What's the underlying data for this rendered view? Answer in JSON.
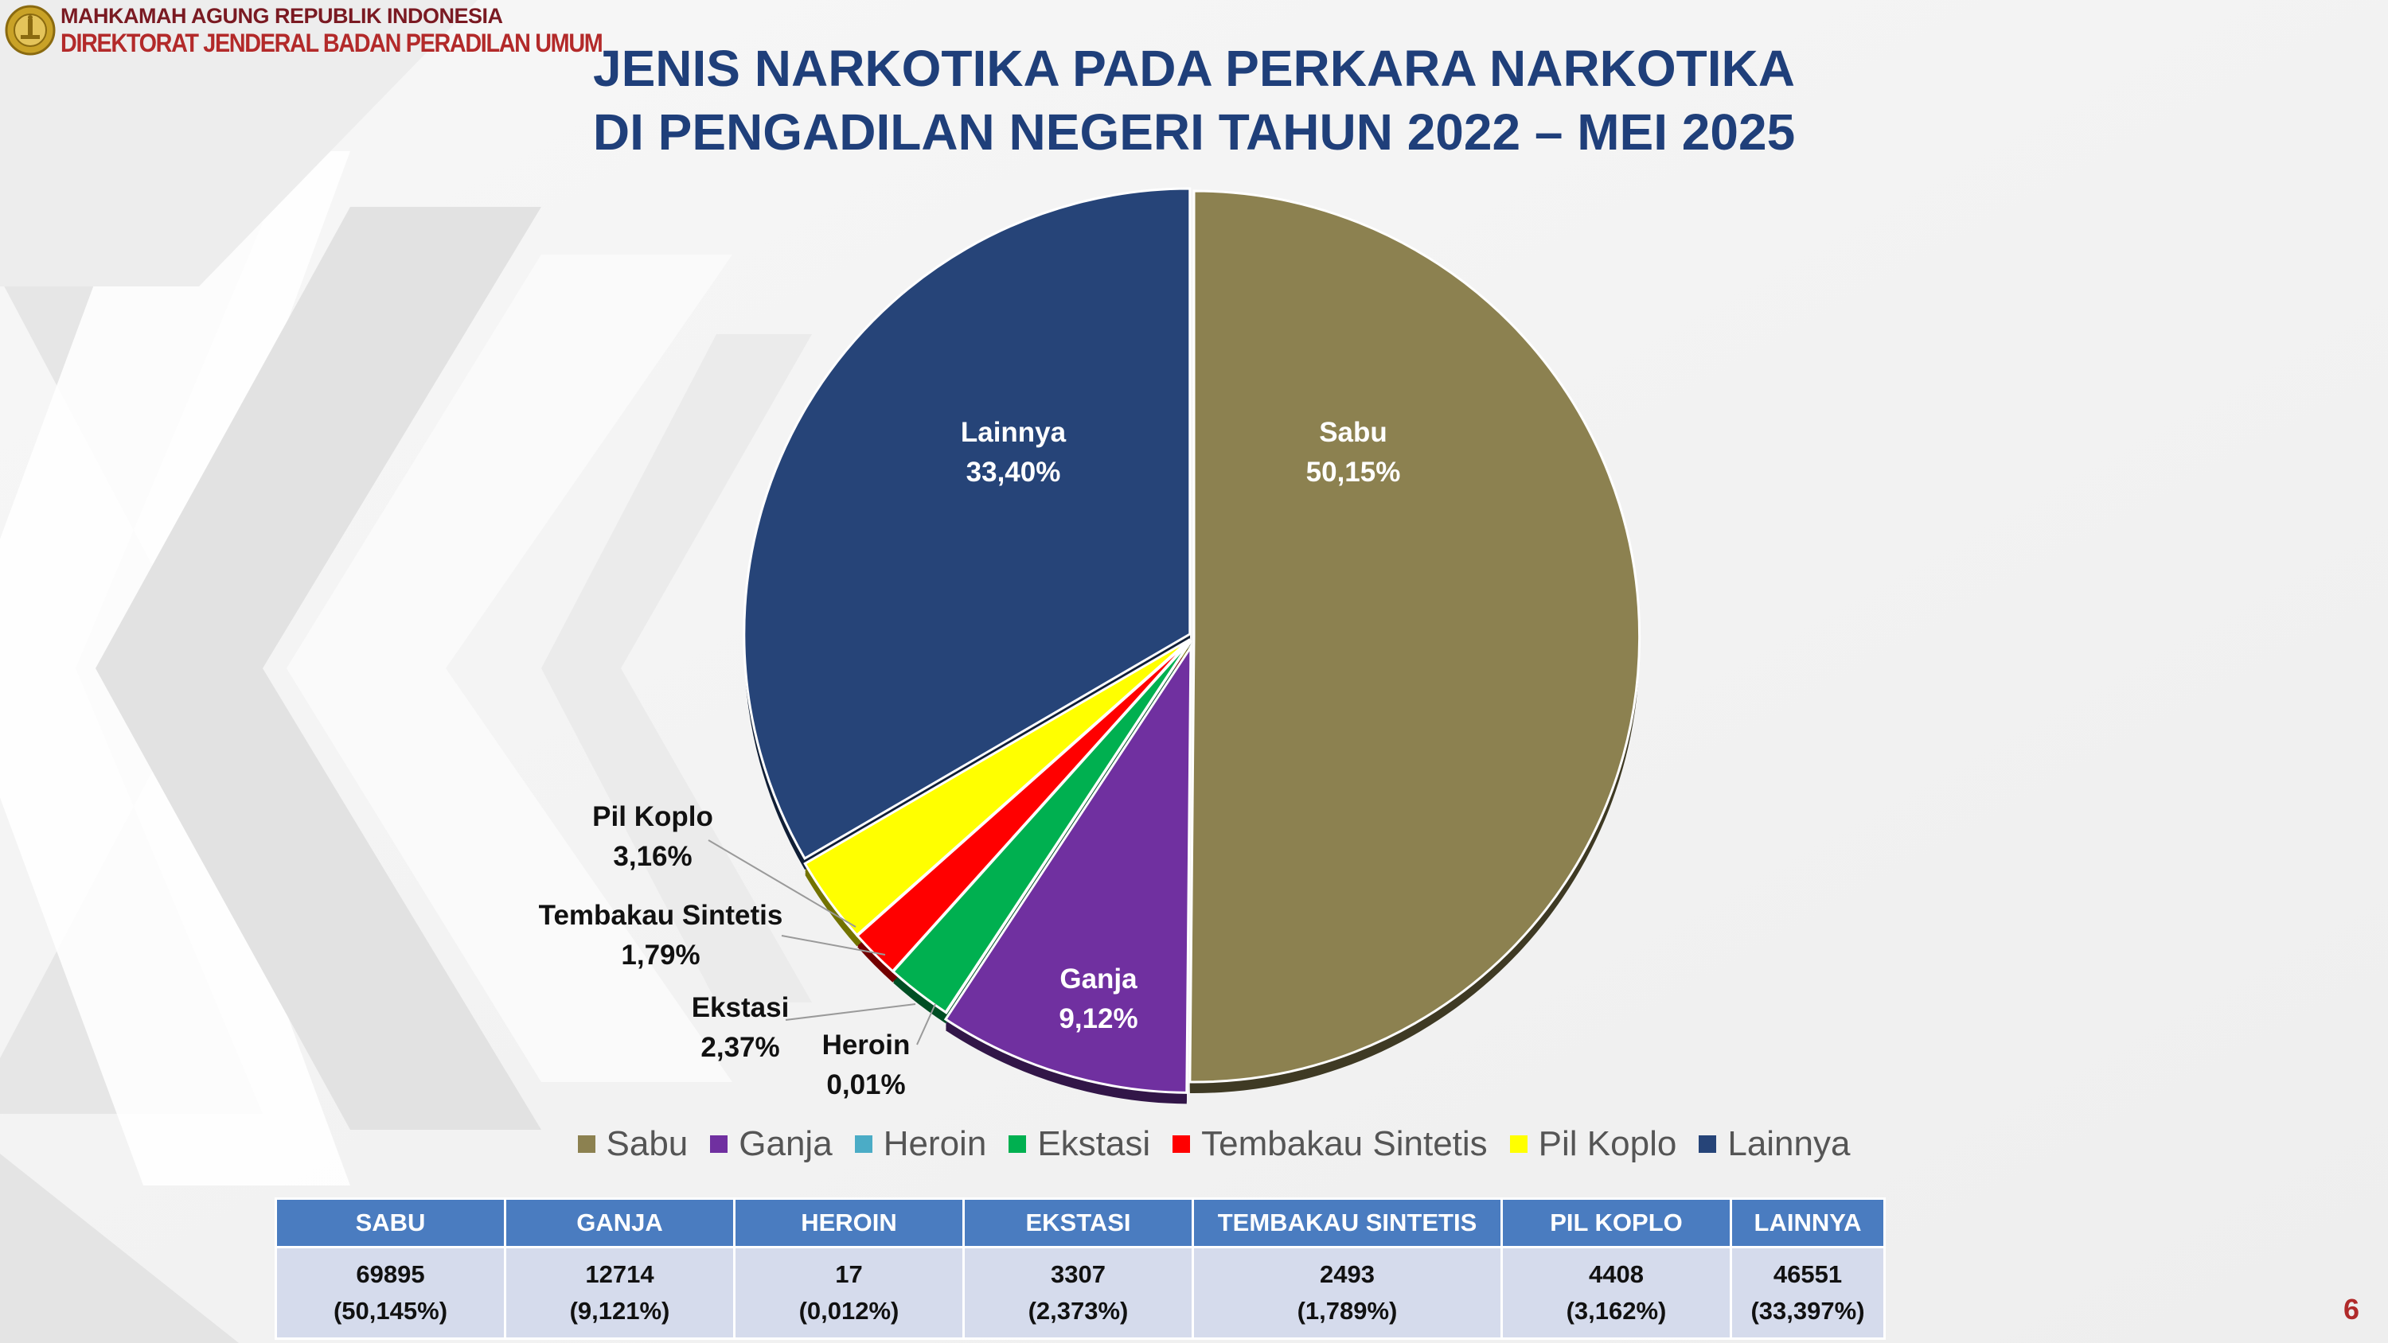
{
  "header": {
    "org_line1": "MAHKAMAH AGUNG REPUBLIK INDONESIA",
    "org_line2": "DIREKTORAT JENDERAL BADAN PERADILAN UMUM"
  },
  "title": {
    "line1": "JENIS NARKOTIKA PADA PERKARA NARKOTIKA",
    "line2": "DI PENGADILAN NEGERI TAHUN 2022 – MEI 2025"
  },
  "chart_data": {
    "type": "pie",
    "title": "JENIS NARKOTIKA PADA PERKARA NARKOTIKA DI PENGADILAN NEGERI TAHUN 2022 – MEI 2025",
    "legend_position": "bottom",
    "slices": [
      {
        "name": "Sabu",
        "value": 69895,
        "label_pct": "50,15%",
        "color": "#8c8150",
        "label_color": "#ffffff",
        "label_mode": "inside"
      },
      {
        "name": "Ganja",
        "value": 12714,
        "label_pct": "9,12%",
        "color": "#7030a0",
        "label_color": "#ffffff",
        "label_mode": "inside"
      },
      {
        "name": "Heroin",
        "value": 17,
        "label_pct": "0,01%",
        "color": "#4bacc6",
        "label_color": "#111111",
        "label_mode": "outside"
      },
      {
        "name": "Ekstasi",
        "value": 3307,
        "label_pct": "2,37%",
        "color": "#00b050",
        "label_color": "#111111",
        "label_mode": "outside"
      },
      {
        "name": "Tembakau Sintetis",
        "value": 2493,
        "label_pct": "1,79%",
        "color": "#ff0000",
        "label_color": "#111111",
        "label_mode": "outside"
      },
      {
        "name": "Pil Koplo",
        "value": 4408,
        "label_pct": "3,16%",
        "color": "#ffff00",
        "label_color": "#111111",
        "label_mode": "outside"
      },
      {
        "name": "Lainnya",
        "value": 46551,
        "label_pct": "33,40%",
        "color": "#264478",
        "label_color": "#ffffff",
        "label_mode": "inside"
      }
    ]
  },
  "table": {
    "headers": [
      "SABU",
      "GANJA",
      "HEROIN",
      "EKSTASI",
      "TEMBAKAU SINTETIS",
      "PIL KOPLO",
      "LAINNYA"
    ],
    "counts": [
      "69895",
      "12714",
      "17",
      "3307",
      "2493",
      "4408",
      "46551"
    ],
    "percents": [
      "(50,145%)",
      "(9,121%)",
      "(0,012%)",
      "(2,373%)",
      "(1,789%)",
      "(3,162%)",
      "(33,397%)"
    ]
  },
  "page_number": "6"
}
